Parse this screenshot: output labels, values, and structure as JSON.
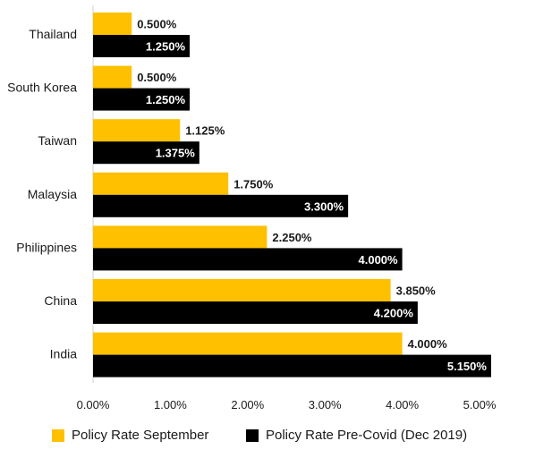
{
  "chart_data": {
    "type": "bar",
    "orientation": "horizontal",
    "categories": [
      "Thailand",
      "South Korea",
      "Taiwan",
      "Malaysia",
      "Philippines",
      "China",
      "India"
    ],
    "series": [
      {
        "name": "Policy Rate September",
        "color": "#FFC000",
        "values": [
          0.5,
          0.5,
          1.125,
          1.75,
          2.25,
          3.85,
          4.0
        ],
        "labels": [
          "0.500%",
          "0.500%",
          "1.125%",
          "1.750%",
          "2.250%",
          "3.850%",
          "4.000%"
        ]
      },
      {
        "name": "Policy Rate Pre-Covid (Dec 2019)",
        "color": "#000000",
        "values": [
          1.25,
          1.25,
          1.375,
          3.3,
          4.0,
          4.2,
          5.15
        ],
        "labels": [
          "1.250%",
          "1.250%",
          "1.375%",
          "3.300%",
          "4.000%",
          "4.200%",
          "5.150%"
        ]
      }
    ],
    "xlim": [
      0,
      5
    ],
    "xticks": [
      "0.00%",
      "1.00%",
      "2.00%",
      "3.00%",
      "4.00%",
      "5.00%"
    ],
    "grid": false,
    "legend_position": "bottom"
  }
}
